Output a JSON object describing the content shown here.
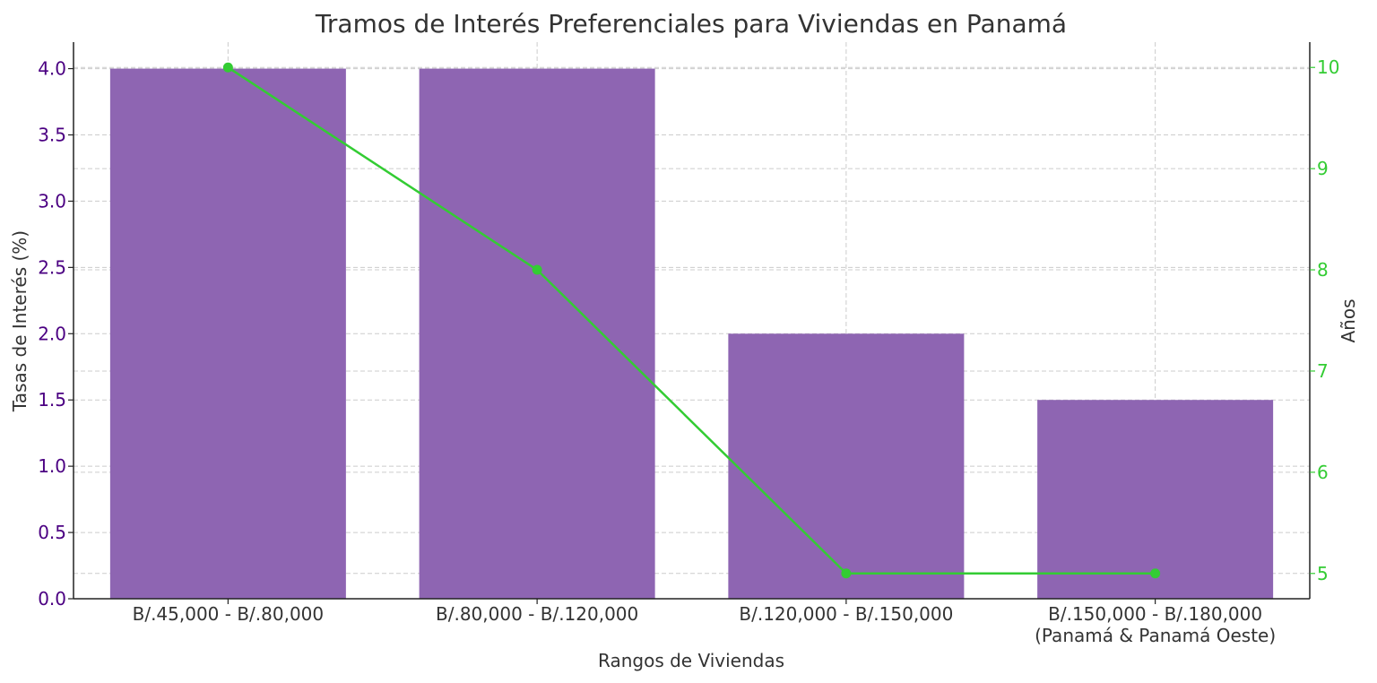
{
  "chart_data": {
    "type": "bar",
    "title": "Tramos de Interés Preferenciales para Viviendas en Panamá",
    "xlabel": "Rangos de Viviendas",
    "ylabel": "Tasas de Interés (%)",
    "y2label": "Años",
    "categories": [
      [
        "B/.45,000 - B/.80,000"
      ],
      [
        "B/.80,000 - B/.120,000"
      ],
      [
        "B/.120,000 - B/.150,000"
      ],
      [
        "B/.150,000 - B/.180,000",
        "(Panamá & Panamá Oeste)"
      ]
    ],
    "series": [
      {
        "type": "bar",
        "axis": "left",
        "values": [
          4.0,
          4.0,
          2.0,
          1.5
        ],
        "color": "#8e65b2"
      },
      {
        "type": "line",
        "axis": "right",
        "values": [
          10,
          8,
          5,
          5
        ],
        "color": "#33cc33"
      }
    ],
    "ylim": [
      0,
      4.2
    ],
    "y2lim": [
      4.75,
      10.25
    ],
    "yticks": [
      "0.0",
      "0.5",
      "1.0",
      "1.5",
      "2.0",
      "2.5",
      "3.0",
      "3.5",
      "4.0"
    ],
    "y2ticks": [
      "5",
      "6",
      "7",
      "8",
      "9",
      "10"
    ],
    "grid": true,
    "colors": {
      "left_axis": "#4b0082",
      "right_axis": "#33cc33",
      "text": "#333333"
    }
  }
}
